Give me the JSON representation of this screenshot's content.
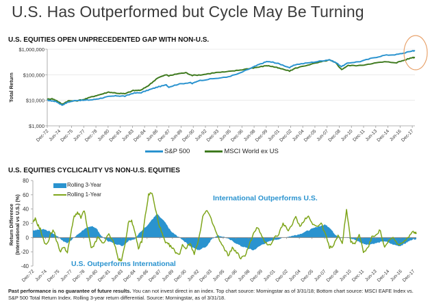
{
  "slide": {
    "title": "U.S. Has Outperformed but Cycle May Be Turning",
    "footnote_bold": "Past performance is no guarantee of future results.",
    "footnote_rest": " You can not invest direct in an index. Top chart source: Morningstar as of 3/31/18; Bottom chart source: MSCI EAFE Index vs. S&P 500 Total Return Index. Rolling 3-year return differential. Source: Morningstar, as of 3/31/18."
  },
  "colors": {
    "sp500": "#2a93cf",
    "msci": "#3f7a1f",
    "rolling3": "#2a93cf",
    "rolling1": "#7ea51a",
    "highlight": "#e8a26b",
    "grid": "#e6e6e6",
    "axis": "#9a9a9a"
  },
  "chart_data": [
    {
      "type": "line",
      "title": "U.S. EQUITIES OPEN UNPRECEDENTED GAP WITH NON-U.S.",
      "xlabel": "",
      "ylabel": "Total Return",
      "yscale": "log",
      "ylim": [
        1000,
        1000000
      ],
      "yticks": [
        1000,
        10000,
        100000,
        1000000
      ],
      "ytick_labels": [
        "$1,000",
        "$10,000",
        "$100,000",
        "$1,000,000"
      ],
      "xlim": [
        1972.92,
        2018.25
      ],
      "xtick_labels": [
        "Dec-72",
        "Jun-74",
        "Dec-75",
        "Jun-77",
        "Dec-78",
        "Jun-80",
        "Dec-81",
        "Jun-83",
        "Dec-84",
        "Jun-86",
        "Dec-87",
        "Jun-89",
        "Dec-90",
        "Jun-92",
        "Dec-93",
        "Jun-95",
        "Dec-96",
        "Jun-98",
        "Dec-99",
        "Jun-01",
        "Dec-02",
        "Jun-04",
        "Dec-05",
        "Jun-07",
        "Dec-08",
        "Jun-10",
        "Dec-11",
        "Jun-13",
        "Dec-14",
        "Jun-16",
        "Dec-17"
      ],
      "xtick_values": [
        1972.92,
        1974.42,
        1975.92,
        1977.42,
        1978.92,
        1980.42,
        1981.92,
        1983.42,
        1984.92,
        1986.42,
        1987.92,
        1989.42,
        1990.92,
        1992.42,
        1993.92,
        1995.42,
        1996.92,
        1998.42,
        1999.92,
        2001.42,
        2002.92,
        2004.42,
        2005.92,
        2007.42,
        2008.92,
        2010.42,
        2011.92,
        2013.42,
        2014.92,
        2016.42,
        2017.92
      ],
      "grid": true,
      "legend": "bottom",
      "highlight_annotation": "circle around latest values (Dec-17)",
      "series": [
        {
          "name": "S&P 500",
          "x": [
            1972.92,
            1973.5,
            1974.0,
            1974.75,
            1975.5,
            1976.5,
            1977.5,
            1978.5,
            1979.5,
            1980.5,
            1981.5,
            1982.5,
            1983.5,
            1984.5,
            1985.5,
            1986.5,
            1987.6,
            1987.9,
            1989.0,
            1990.5,
            1990.8,
            1991.5,
            1993.0,
            1995.0,
            1996.5,
            1998.0,
            1999.0,
            2000.0,
            2000.7,
            2001.5,
            2002.8,
            2003.5,
            2005.0,
            2006.5,
            2007.7,
            2008.5,
            2009.2,
            2010.0,
            2011.5,
            2013.0,
            2014.5,
            2016.0,
            2017.0,
            2018.0,
            2018.25
          ],
          "values": [
            10000,
            9500,
            9000,
            6500,
            8500,
            10000,
            10000,
            10500,
            12000,
            14000,
            15000,
            14500,
            19000,
            20000,
            26000,
            33000,
            40000,
            33000,
            42000,
            50000,
            45000,
            58000,
            68000,
            80000,
            110000,
            180000,
            250000,
            330000,
            310000,
            270000,
            190000,
            250000,
            290000,
            340000,
            390000,
            300000,
            210000,
            290000,
            330000,
            450000,
            580000,
            620000,
            720000,
            880000,
            850000
          ]
        },
        {
          "name": "MSCI World ex US",
          "x": [
            1972.92,
            1973.5,
            1974.0,
            1974.75,
            1975.5,
            1976.5,
            1977.5,
            1978.5,
            1979.5,
            1980.5,
            1981.5,
            1982.5,
            1983.5,
            1984.5,
            1985.5,
            1986.5,
            1987.6,
            1987.9,
            1989.0,
            1990.0,
            1990.8,
            1992.0,
            1993.5,
            1995.0,
            1996.5,
            1998.0,
            1999.0,
            2000.0,
            2000.7,
            2001.5,
            2002.8,
            2003.5,
            2005.0,
            2006.5,
            2007.7,
            2008.5,
            2009.2,
            2010.0,
            2011.5,
            2013.0,
            2014.5,
            2016.0,
            2017.0,
            2018.0,
            2018.25
          ],
          "values": [
            11000,
            11500,
            10000,
            7000,
            9500,
            9500,
            11000,
            14000,
            17000,
            21000,
            19000,
            18000,
            24000,
            25000,
            40000,
            75000,
            100000,
            90000,
            110000,
            120000,
            95000,
            100000,
            120000,
            130000,
            150000,
            180000,
            200000,
            230000,
            210000,
            180000,
            140000,
            180000,
            240000,
            310000,
            380000,
            290000,
            160000,
            230000,
            230000,
            280000,
            320000,
            300000,
            380000,
            480000,
            470000
          ]
        }
      ]
    },
    {
      "type": "area",
      "title": "U.S. EQUITIES CYCLICALITY VS NON-U.S. EQUITIES",
      "xlabel": "",
      "ylabel": "Return Difference (International vs U.S.) (%)",
      "ylim": [
        -40,
        80
      ],
      "yticks": [
        -40,
        -20,
        0,
        20,
        40,
        60,
        80
      ],
      "xlim": [
        1972.92,
        2018.25
      ],
      "xtick_labels": [
        "Dec-72",
        "Jun-74",
        "Dec-75",
        "Jun-77",
        "Dec-78",
        "Jun-80",
        "Dec-81",
        "Jun-83",
        "Dec-84",
        "Jun-86",
        "Dec-87",
        "Jun-89",
        "Dec-90",
        "Jun-92",
        "Dec-93",
        "Jun-95",
        "Dec-96",
        "Jun-98",
        "Dec-99",
        "Jun-01",
        "Dec-02",
        "Jun-04",
        "Dec-05",
        "Jun-07",
        "Dec-08",
        "Jun-10",
        "Dec-11",
        "Jun-13",
        "Dec-14",
        "Jun-16",
        "Dec-17"
      ],
      "xtick_values": [
        1972.92,
        1974.42,
        1975.92,
        1977.42,
        1978.92,
        1980.42,
        1981.92,
        1983.42,
        1984.92,
        1986.42,
        1987.92,
        1989.42,
        1990.92,
        1992.42,
        1993.92,
        1995.42,
        1996.92,
        1998.42,
        1999.92,
        2001.42,
        2002.92,
        2004.42,
        2005.92,
        2007.42,
        2008.92,
        2010.42,
        2011.92,
        2013.42,
        2014.92,
        2016.42,
        2017.92
      ],
      "grid": false,
      "legend": "top-left",
      "annotations": [
        "International Outperforms U.S.",
        "U.S. Outperforms International"
      ],
      "series": [
        {
          "name": "Rolling 3-Year",
          "kind": "area",
          "x": [
            1972.92,
            1973.5,
            1974.2,
            1975.0,
            1975.8,
            1976.5,
            1977.0,
            1977.5,
            1978.0,
            1979.0,
            1980.0,
            1980.5,
            1981.0,
            1981.8,
            1982.5,
            1983.5,
            1984.3,
            1985.0,
            1985.5,
            1986.5,
            1987.0,
            1987.6,
            1988.5,
            1989.3,
            1990.0,
            1990.5,
            1991.5,
            1992.5,
            1993.5,
            1994.0,
            1994.7,
            1995.5,
            1996.5,
            1997.5,
            1998.3,
            1999.0,
            2000.0,
            2001.0,
            2002.0,
            2003.0,
            2003.8,
            2004.5,
            2005.5,
            2006.5,
            2007.5,
            2008.0,
            2008.6,
            2009.3,
            2010.0,
            2011.0,
            2011.8,
            2012.5,
            2013.5,
            2014.5,
            2015.5,
            2016.3,
            2017.0,
            2017.7,
            2018.25
          ],
          "values": [
            10,
            11,
            12,
            8,
            2,
            -5,
            -8,
            -3,
            2,
            12,
            16,
            12,
            2,
            -5,
            -8,
            -12,
            -4,
            -2,
            6,
            18,
            25,
            33,
            22,
            8,
            2,
            -2,
            -12,
            -18,
            -12,
            -3,
            3,
            1,
            -5,
            -12,
            -15,
            -18,
            -10,
            -5,
            -2,
            1,
            3,
            5,
            10,
            15,
            18,
            14,
            5,
            -1,
            0,
            -3,
            -8,
            -10,
            -8,
            -5,
            -10,
            -12,
            -8,
            -3,
            -2
          ]
        },
        {
          "name": "Rolling 1-Year",
          "kind": "line",
          "x": [
            1972.92,
            1973.2,
            1973.5,
            1973.8,
            1974.2,
            1974.6,
            1975.0,
            1975.4,
            1975.8,
            1976.2,
            1976.6,
            1977.0,
            1977.4,
            1977.8,
            1978.2,
            1978.6,
            1979.0,
            1979.4,
            1979.8,
            1980.2,
            1980.6,
            1981.0,
            1981.4,
            1981.8,
            1982.2,
            1982.6,
            1983.0,
            1983.4,
            1983.8,
            1984.2,
            1984.6,
            1985.0,
            1985.4,
            1985.8,
            1986.2,
            1986.6,
            1987.0,
            1987.4,
            1987.8,
            1988.2,
            1988.6,
            1989.0,
            1989.4,
            1989.8,
            1990.2,
            1990.6,
            1991.0,
            1991.5,
            1992.0,
            1992.5,
            1993.0,
            1993.5,
            1994.0,
            1994.5,
            1995.0,
            1995.5,
            1996.0,
            1996.5,
            1997.0,
            1997.5,
            1998.0,
            1998.5,
            1999.0,
            1999.5,
            2000.0,
            2000.5,
            2001.0,
            2001.5,
            2002.0,
            2002.5,
            2003.0,
            2003.5,
            2004.0,
            2004.5,
            2005.0,
            2005.5,
            2006.0,
            2006.5,
            2007.0,
            2007.5,
            2008.0,
            2008.5,
            2009.0,
            2009.5,
            2010.0,
            2010.5,
            2011.0,
            2011.5,
            2012.0,
            2012.5,
            2013.0,
            2013.5,
            2014.0,
            2014.5,
            2015.0,
            2015.5,
            2016.0,
            2016.5,
            2017.0,
            2017.5,
            2018.0,
            2018.25
          ],
          "values": [
            20,
            26,
            18,
            12,
            -5,
            -10,
            5,
            10,
            -8,
            -20,
            -12,
            -22,
            5,
            30,
            35,
            28,
            38,
            10,
            -15,
            -10,
            0,
            -5,
            -8,
            5,
            0,
            -10,
            -30,
            -33,
            -10,
            20,
            25,
            5,
            -15,
            -5,
            30,
            60,
            63,
            40,
            20,
            5,
            -8,
            -10,
            -15,
            -20,
            -25,
            -10,
            -15,
            -8,
            -22,
            -5,
            30,
            38,
            25,
            10,
            -5,
            -15,
            -25,
            -15,
            -20,
            -30,
            -25,
            -10,
            5,
            15,
            0,
            -8,
            -10,
            0,
            5,
            20,
            10,
            15,
            30,
            15,
            25,
            30,
            20,
            15,
            20,
            5,
            -15,
            -10,
            5,
            -10,
            40,
            -5,
            -10,
            5,
            -20,
            -15,
            0,
            5,
            10,
            -15,
            -5,
            0,
            -10,
            -8,
            -5,
            5,
            8,
            5
          ]
        }
      ]
    }
  ]
}
